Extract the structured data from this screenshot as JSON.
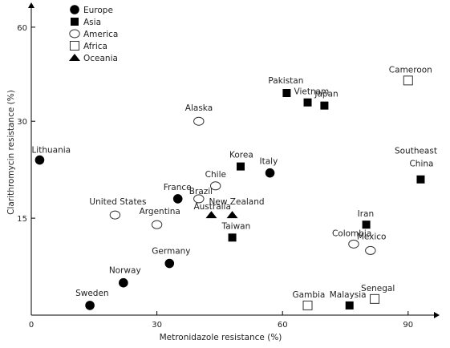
{
  "chart_data": {
    "type": "scatter",
    "xlabel": "Metronidazole resistance (%)",
    "ylabel": "Clarithromycin resistance (%)",
    "xlim": [
      0,
      97
    ],
    "ylim": [
      0,
      66
    ],
    "xticks": [
      0,
      30,
      60,
      90
    ],
    "yticks": [
      15,
      30,
      60
    ],
    "ytick_labels": [
      "15",
      "30",
      "60"
    ],
    "y_axis_note": "y-axis compressed above 30",
    "legend_position": "top-left",
    "grid": false,
    "legend": [
      {
        "name": "Europe",
        "marker": "filled-circle"
      },
      {
        "name": "Asia",
        "marker": "filled-square"
      },
      {
        "name": "America",
        "marker": "open-circle"
      },
      {
        "name": "Africa",
        "marker": "open-square"
      },
      {
        "name": "Oceania",
        "marker": "filled-triangle"
      }
    ],
    "series": [
      {
        "name": "Europe",
        "points": [
          {
            "label": "Lithuania",
            "x": 2,
            "y": 24
          },
          {
            "label": "France",
            "x": 35,
            "y": 18
          },
          {
            "label": "Italy",
            "x": 57,
            "y": 22
          },
          {
            "label": "Germany",
            "x": 33,
            "y": 8
          },
          {
            "label": "Norway",
            "x": 22,
            "y": 5
          },
          {
            "label": "Sweden",
            "x": 14,
            "y": 1.5
          }
        ]
      },
      {
        "name": "Asia",
        "points": [
          {
            "label": "Pakistan",
            "x": 61,
            "y": 39
          },
          {
            "label": "Vietnam",
            "x": 66,
            "y": 36
          },
          {
            "label": "Japan",
            "x": 70,
            "y": 35
          },
          {
            "label": "Korea",
            "x": 50,
            "y": 23
          },
          {
            "label": "Taiwan",
            "x": 48,
            "y": 12
          },
          {
            "label": "Iran",
            "x": 80,
            "y": 14
          },
          {
            "label": "Southeast China",
            "x": 93,
            "y": 21
          },
          {
            "label": "Malaysia",
            "x": 76,
            "y": 1.5
          }
        ]
      },
      {
        "name": "America",
        "points": [
          {
            "label": "Alaska",
            "x": 40,
            "y": 30
          },
          {
            "label": "Chile",
            "x": 44,
            "y": 20
          },
          {
            "label": "Brazil",
            "x": 40,
            "y": 18
          },
          {
            "label": "United States",
            "x": 20,
            "y": 15.5
          },
          {
            "label": "Argentina",
            "x": 30,
            "y": 14
          },
          {
            "label": "Colombia",
            "x": 77,
            "y": 11
          },
          {
            "label": "Mexico",
            "x": 81,
            "y": 10
          }
        ]
      },
      {
        "name": "Africa",
        "points": [
          {
            "label": "Cameroon",
            "x": 90,
            "y": 43
          },
          {
            "label": "Gambia",
            "x": 66,
            "y": 1.5
          },
          {
            "label": "Senegal",
            "x": 82,
            "y": 2.5
          }
        ]
      },
      {
        "name": "Oceania",
        "points": [
          {
            "label": "Australia",
            "x": 43,
            "y": 15.5
          },
          {
            "label": "New Zealand",
            "x": 48,
            "y": 15.5
          }
        ]
      }
    ]
  }
}
